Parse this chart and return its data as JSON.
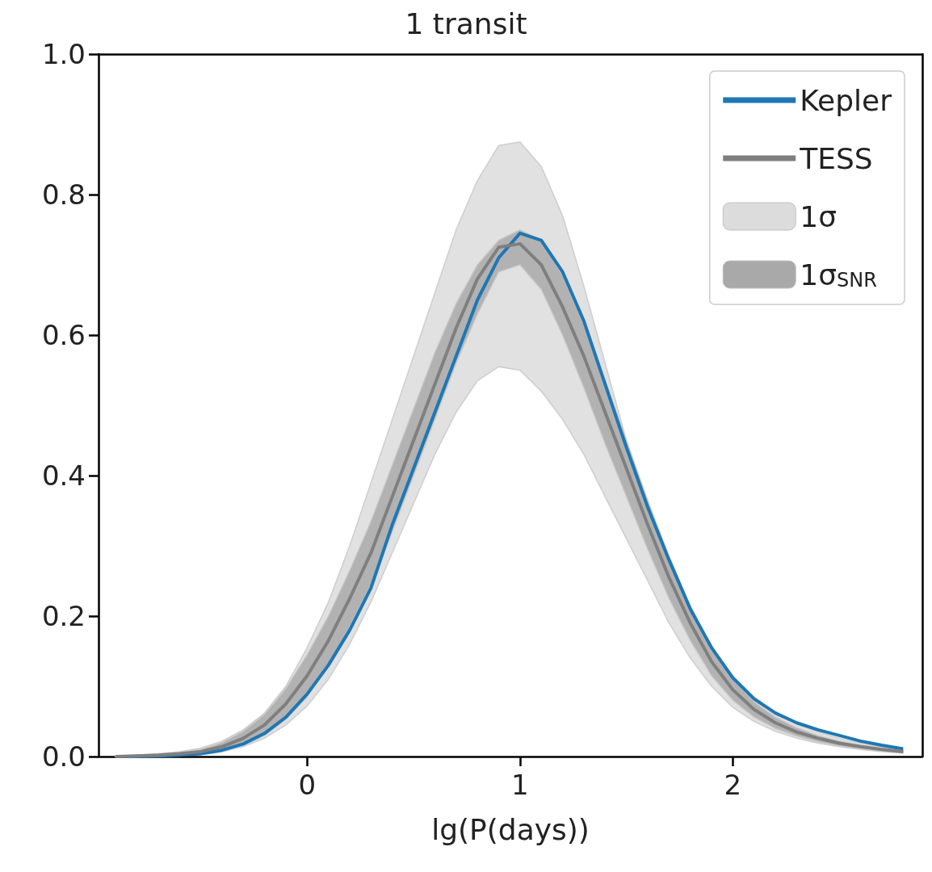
{
  "chart_data": {
    "type": "line",
    "title": "1 transit",
    "xlabel": "lg(P(days))",
    "xlim": [
      -0.98,
      2.89
    ],
    "xticks": [
      0,
      1,
      2
    ],
    "ylim": [
      0,
      1
    ],
    "yticks": [
      {
        "value": 0,
        "label": "0.0"
      },
      0.2,
      0.4,
      0.6,
      0.8,
      {
        "value": 1,
        "label": "1.0"
      }
    ],
    "grid": false,
    "legend": "top right",
    "marker": "none",
    "line_style": "solid",
    "x": [
      -0.9,
      -0.8,
      -0.7,
      -0.6,
      -0.5,
      -0.4,
      -0.3,
      -0.2,
      -0.1,
      0,
      0.1,
      0.2,
      0.3,
      0.4,
      0.5,
      0.6,
      0.7,
      0.8,
      0.9,
      1.0,
      1.1,
      1.2,
      1.3,
      1.4,
      1.5,
      1.6,
      1.7,
      1.8,
      1.9,
      2.0,
      2.1,
      2.2,
      2.3,
      2.4,
      2.5,
      2.6,
      2.7,
      2.8
    ],
    "series": [
      {
        "name": "Kepler",
        "type": "line",
        "color": "#1f77b4",
        "values": [
          0,
          0,
          0.001,
          0.002,
          0.004,
          0.009,
          0.018,
          0.033,
          0.056,
          0.089,
          0.13,
          0.18,
          0.24,
          0.33,
          0.41,
          0.49,
          0.57,
          0.65,
          0.71,
          0.745,
          0.735,
          0.69,
          0.62,
          0.53,
          0.44,
          0.355,
          0.28,
          0.21,
          0.155,
          0.112,
          0.082,
          0.062,
          0.048,
          0.038,
          0.03,
          0.022,
          0.016,
          0.011
        ]
      },
      {
        "name": "TESS",
        "type": "line",
        "color": "#7f7f7f",
        "values": [
          0,
          0.001,
          0.002,
          0.004,
          0.007,
          0.014,
          0.026,
          0.045,
          0.075,
          0.115,
          0.165,
          0.225,
          0.29,
          0.37,
          0.45,
          0.53,
          0.61,
          0.68,
          0.725,
          0.73,
          0.7,
          0.64,
          0.57,
          0.49,
          0.41,
          0.33,
          0.255,
          0.19,
          0.135,
          0.095,
          0.067,
          0.048,
          0.035,
          0.026,
          0.019,
          0.014,
          0.01,
          0.007
        ]
      },
      {
        "name": "1σ",
        "color": "#dcdcdc",
        "values": [
          null,
          null,
          null,
          null,
          null,
          null,
          null,
          null,
          null,
          null,
          null,
          null,
          null,
          null,
          null,
          null,
          null,
          null,
          null,
          null,
          null,
          null,
          null,
          null,
          null,
          null,
          null,
          null,
          null,
          null,
          null,
          null,
          null,
          null,
          null,
          null,
          null,
          null
        ],
        "lower": [
          0,
          0,
          0.001,
          0.002,
          0.003,
          0.007,
          0.014,
          0.026,
          0.045,
          0.072,
          0.11,
          0.16,
          0.22,
          0.29,
          0.36,
          0.43,
          0.49,
          0.535,
          0.555,
          0.55,
          0.52,
          0.48,
          0.43,
          0.37,
          0.31,
          0.25,
          0.19,
          0.14,
          0.1,
          0.07,
          0.05,
          0.036,
          0.026,
          0.019,
          0.014,
          0.01,
          0.007,
          0.005
        ],
        "upper": [
          0.001,
          0.002,
          0.004,
          0.007,
          0.012,
          0.022,
          0.038,
          0.062,
          0.1,
          0.155,
          0.22,
          0.3,
          0.39,
          0.48,
          0.57,
          0.66,
          0.75,
          0.82,
          0.87,
          0.875,
          0.84,
          0.77,
          0.67,
          0.56,
          0.45,
          0.36,
          0.28,
          0.21,
          0.155,
          0.115,
          0.085,
          0.063,
          0.047,
          0.035,
          0.026,
          0.019,
          0.014,
          0.01
        ]
      },
      {
        "name": "1σ$_{SNR}$",
        "color": "#a9a9a9",
        "values": [
          null,
          null,
          null,
          null,
          null,
          null,
          null,
          null,
          null,
          null,
          null,
          null,
          null,
          null,
          null,
          null,
          null,
          null,
          null,
          null,
          null,
          null,
          null,
          null,
          null,
          null,
          null,
          null,
          null,
          null,
          null,
          null,
          null,
          null,
          null,
          null,
          null,
          null
        ],
        "lower": [
          0,
          0.001,
          0.001,
          0.002,
          0.004,
          0.008,
          0.016,
          0.03,
          0.053,
          0.085,
          0.13,
          0.185,
          0.245,
          0.32,
          0.4,
          0.48,
          0.56,
          0.63,
          0.69,
          0.7,
          0.665,
          0.6,
          0.525,
          0.445,
          0.37,
          0.295,
          0.225,
          0.165,
          0.115,
          0.08,
          0.056,
          0.04,
          0.029,
          0.021,
          0.015,
          0.011,
          0.008,
          0.006
        ],
        "upper": [
          0.001,
          0.002,
          0.003,
          0.006,
          0.01,
          0.02,
          0.036,
          0.06,
          0.097,
          0.145,
          0.2,
          0.265,
          0.335,
          0.415,
          0.495,
          0.575,
          0.645,
          0.7,
          0.735,
          0.75,
          0.735,
          0.685,
          0.615,
          0.535,
          0.45,
          0.365,
          0.285,
          0.215,
          0.155,
          0.11,
          0.078,
          0.056,
          0.041,
          0.03,
          0.022,
          0.016,
          0.012,
          0.008
        ]
      }
    ]
  }
}
